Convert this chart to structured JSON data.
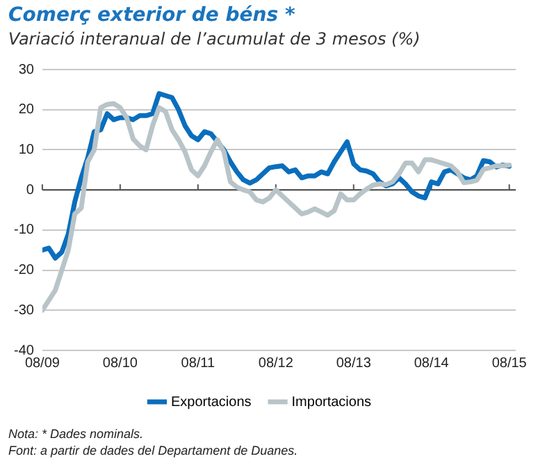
{
  "chart_data": {
    "type": "line",
    "title": "Comerç exterior de béns *",
    "subtitle": "Variació interanual de l’acumulat de 3 mesos (%)",
    "annotations": [
      "Nota: * Dades nominals.",
      "Font: a partir de dades del Departament de Duanes."
    ],
    "x": [
      "2009-08",
      "2009-09",
      "2009-10",
      "2009-11",
      "2009-12",
      "2010-01",
      "2010-02",
      "2010-03",
      "2010-04",
      "2010-05",
      "2010-06",
      "2010-07",
      "2010-08",
      "2010-09",
      "2010-10",
      "2010-11",
      "2010-12",
      "2011-01",
      "2011-02",
      "2011-03",
      "2011-04",
      "2011-05",
      "2011-06",
      "2011-07",
      "2011-08",
      "2011-09",
      "2011-10",
      "2011-11",
      "2011-12",
      "2012-01",
      "2012-02",
      "2012-03",
      "2012-04",
      "2012-05",
      "2012-06",
      "2012-07",
      "2012-08",
      "2012-09",
      "2012-10",
      "2012-11",
      "2012-12",
      "2013-01",
      "2013-02",
      "2013-03",
      "2013-04",
      "2013-05",
      "2013-06",
      "2013-07",
      "2013-08",
      "2013-09",
      "2013-10",
      "2013-11",
      "2013-12",
      "2014-01",
      "2014-02",
      "2014-03",
      "2014-04",
      "2014-05",
      "2014-06",
      "2014-07",
      "2014-08",
      "2014-09",
      "2014-10",
      "2014-11",
      "2014-12",
      "2015-01",
      "2015-02",
      "2015-03",
      "2015-04",
      "2015-05",
      "2015-06",
      "2015-07",
      "2015-08"
    ],
    "series": [
      {
        "name": "Exportacions",
        "color": "#0a6ebd",
        "values": [
          -15,
          -14.5,
          -17,
          -15.5,
          -11,
          -3,
          3,
          8,
          14.5,
          15,
          19,
          17.5,
          18,
          18,
          17.5,
          18.5,
          18.5,
          19,
          24,
          23.5,
          23,
          20,
          16,
          13.5,
          12.5,
          14.5,
          14,
          12,
          10,
          7,
          4.5,
          2.5,
          1.7,
          2.5,
          4,
          5.5,
          5.8,
          6,
          4.5,
          5,
          3,
          3.5,
          3.5,
          4.5,
          4,
          7,
          9.5,
          12,
          6.5,
          5,
          4.7,
          4,
          2,
          1,
          1.5,
          3,
          1.5,
          -0.5,
          -1.5,
          -2,
          2,
          1.5,
          4.5,
          5,
          4,
          3,
          2.5,
          3.5,
          7.3,
          7,
          5.7,
          6.2,
          5.9
        ]
      },
      {
        "name": "Importacions",
        "color": "#b8c4c8",
        "values": [
          -30,
          -27.5,
          -25,
          -20,
          -15,
          -6,
          -4.5,
          7,
          10,
          20.5,
          21.3,
          21.5,
          20.5,
          18,
          12.7,
          11,
          10,
          16,
          20.5,
          19.5,
          15,
          12.5,
          9.5,
          5,
          3.5,
          6,
          9.5,
          12.5,
          9.5,
          2,
          0.7,
          0,
          -0.5,
          -2.5,
          -3,
          -2,
          0,
          -1.5,
          -3,
          -4.5,
          -6,
          -5.5,
          -4.7,
          -5.5,
          -6.3,
          -5.2,
          -1,
          -2.5,
          -2.5,
          -1,
          0.2,
          1.2,
          1.5,
          1.3,
          2,
          4,
          6.7,
          6.7,
          4.5,
          7.5,
          7.5,
          7,
          6.5,
          6,
          4.5,
          1.8,
          2,
          2.4,
          5.1,
          5.5,
          6,
          6,
          6.2
        ]
      }
    ],
    "xlim": [
      "2009-08",
      "2015-09"
    ],
    "xticks": [
      {
        "value": "2009-08",
        "label": "08/09"
      },
      {
        "value": "2010-08",
        "label": "08/10"
      },
      {
        "value": "2011-08",
        "label": "08/11"
      },
      {
        "value": "2012-08",
        "label": "08/12"
      },
      {
        "value": "2013-08",
        "label": "08/13"
      },
      {
        "value": "2014-08",
        "label": "08/14"
      },
      {
        "value": "2015-08",
        "label": "08/15"
      }
    ],
    "ylim": [
      -40,
      30
    ],
    "yticks": [
      -40,
      -30,
      -20,
      -10,
      0,
      10,
      20,
      30
    ],
    "grid": "y",
    "legend": "bottom",
    "marker": "none",
    "line_style": "solid"
  }
}
